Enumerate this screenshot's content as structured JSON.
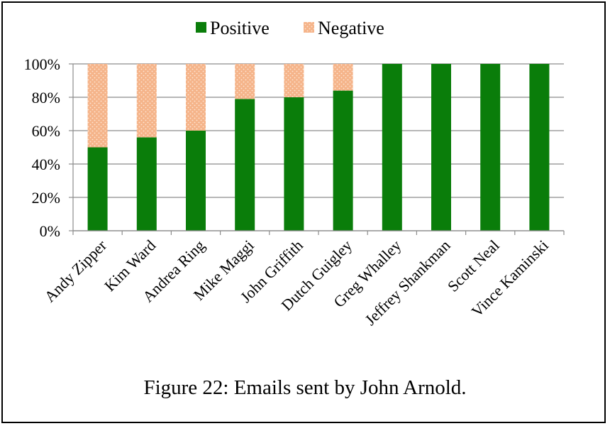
{
  "caption": "Figure 22: Emails sent by John Arnold.",
  "chart_data": {
    "type": "bar",
    "stacked": true,
    "categories": [
      "Andy Zipper",
      "Kim Ward",
      "Andrea Ring",
      "Mike Maggi",
      "John Griffith",
      "Dutch Guigley",
      "Greg Whalley",
      "Jeffrey Shankman",
      "Scott Neal",
      "Vince Kaminski"
    ],
    "series": [
      {
        "name": "Positive",
        "color": "#0a7d0a",
        "values": [
          50,
          56,
          60,
          79,
          80,
          84,
          100,
          100,
          100,
          100
        ]
      },
      {
        "name": "Negative",
        "color": "#f5b48a",
        "values": [
          50,
          44,
          40,
          21,
          20,
          16,
          0,
          0,
          0,
          0
        ]
      }
    ],
    "y_ticks": [
      "0%",
      "20%",
      "40%",
      "60%",
      "80%",
      "100%"
    ],
    "ylim": [
      0,
      100
    ],
    "legend": "top-center",
    "grid": true
  }
}
